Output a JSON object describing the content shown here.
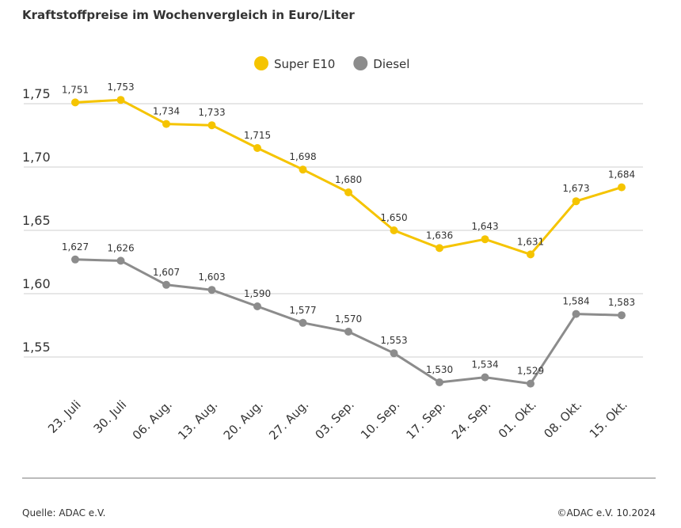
{
  "chart_data": {
    "type": "line",
    "title": "Kraftstoffpreise im Wochenvergleich in Euro/Liter",
    "source": "Quelle: ADAC e.V.",
    "copyright": "©ADAC e.V. 10.2024",
    "categories": [
      "23. Juli",
      "30. Juli",
      "06. Aug.",
      "13. Aug.",
      "20. Aug.",
      "27. Aug.",
      "03. Sep.",
      "10. Sep.",
      "17. Sep.",
      "24. Sep.",
      "01. Okt.",
      "08. Okt.",
      "15. Okt."
    ],
    "series": [
      {
        "name": "Super E10",
        "color": "#f5c400",
        "values": [
          1.751,
          1.753,
          1.734,
          1.733,
          1.715,
          1.698,
          1.68,
          1.65,
          1.636,
          1.643,
          1.631,
          1.673,
          1.684
        ],
        "value_labels": [
          "1,751",
          "1,753",
          "1,734",
          "1,733",
          "1,715",
          "1,698",
          "1,680",
          "1,650",
          "1,636",
          "1,643",
          "1,631",
          "1,673",
          "1,684"
        ]
      },
      {
        "name": "Diesel",
        "color": "#8c8c8c",
        "values": [
          1.627,
          1.626,
          1.607,
          1.603,
          1.59,
          1.577,
          1.57,
          1.553,
          1.53,
          1.534,
          1.529,
          1.584,
          1.583
        ],
        "value_labels": [
          "1,627",
          "1,626",
          "1,607",
          "1,603",
          "1,590",
          "1,577",
          "1,570",
          "1,553",
          "1,530",
          "1,534",
          "1,529",
          "1,584",
          "1,583"
        ]
      }
    ],
    "ylim": [
      1.52,
      1.77
    ],
    "yticks": [
      {
        "value": 1.55,
        "label": "1,55"
      },
      {
        "value": 1.6,
        "label": "1,60"
      },
      {
        "value": 1.65,
        "label": "1,65"
      },
      {
        "value": 1.7,
        "label": "1,70"
      },
      {
        "value": 1.75,
        "label": "1,75"
      }
    ],
    "grid": true,
    "legend": "top"
  }
}
